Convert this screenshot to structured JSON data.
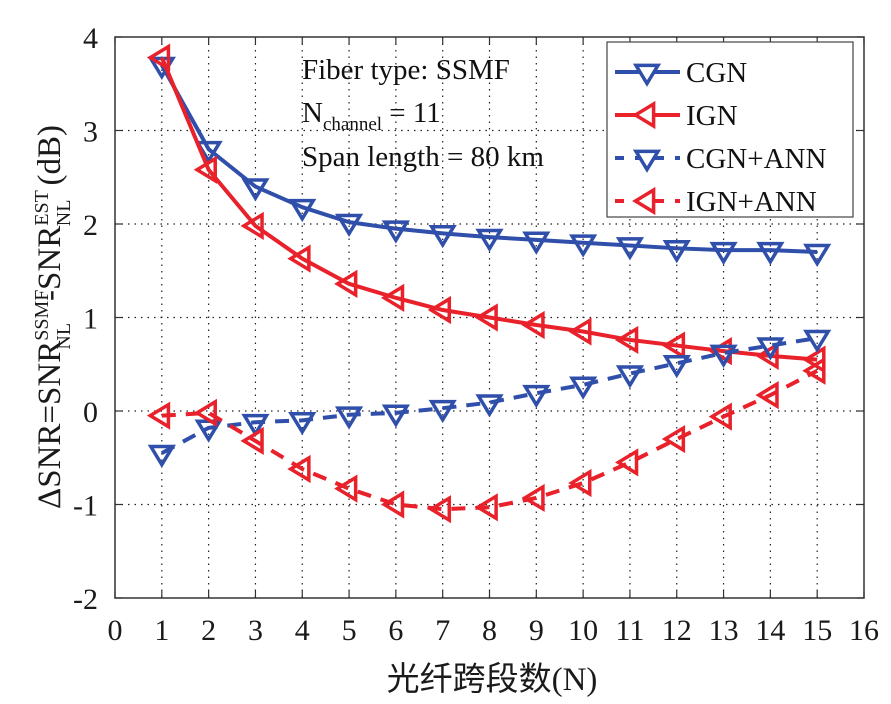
{
  "chart_data": {
    "type": "line",
    "title": "",
    "xlabel": "光纤跨段数(N)",
    "ylabel": {
      "prefix": "ΔSNR=SNR",
      "sub1": "NL",
      "sup1": "SSMF",
      "mid": "-SNR",
      "sub2": "NL",
      "sup2": "EST",
      "suffix": "(dB)"
    },
    "xlim": [
      0,
      16
    ],
    "ylim": [
      -2,
      4
    ],
    "xticks": [
      "0",
      "1",
      "2",
      "3",
      "4",
      "5",
      "6",
      "7",
      "8",
      "9",
      "10",
      "11",
      "12",
      "13",
      "14",
      "15",
      "16"
    ],
    "yticks": [
      "-2",
      "-1",
      "0",
      "1",
      "2",
      "3",
      "4"
    ],
    "grid": true,
    "x": [
      1,
      2,
      3,
      4,
      5,
      6,
      7,
      8,
      9,
      10,
      11,
      12,
      13,
      14,
      15
    ],
    "series": [
      {
        "name": "CGN",
        "color": "#2f4faa",
        "style": "solid",
        "marker": "triangle-down",
        "values": [
          3.7,
          2.8,
          2.4,
          2.18,
          2.02,
          1.95,
          1.9,
          1.86,
          1.83,
          1.8,
          1.77,
          1.74,
          1.72,
          1.72,
          1.7
        ]
      },
      {
        "name": "IGN",
        "color": "#e8212a",
        "style": "solid",
        "marker": "triangle-left",
        "values": [
          3.78,
          2.58,
          1.98,
          1.63,
          1.36,
          1.21,
          1.08,
          1.0,
          0.92,
          0.85,
          0.76,
          0.7,
          0.64,
          0.59,
          0.55
        ]
      },
      {
        "name": "CGN+ANN",
        "color": "#2f4faa",
        "style": "dashed",
        "marker": "triangle-down",
        "values": [
          -0.45,
          -0.18,
          -0.12,
          -0.1,
          -0.04,
          -0.02,
          0.03,
          0.09,
          0.19,
          0.28,
          0.4,
          0.51,
          0.62,
          0.7,
          0.78
        ]
      },
      {
        "name": "IGN+ANN",
        "color": "#e8212a",
        "style": "dashed",
        "marker": "triangle-left",
        "values": [
          -0.05,
          -0.02,
          -0.32,
          -0.62,
          -0.83,
          -1.0,
          -1.05,
          -1.03,
          -0.93,
          -0.77,
          -0.55,
          -0.3,
          -0.06,
          0.17,
          0.43
        ]
      }
    ],
    "legend": {
      "placement": "top-right",
      "entries": [
        "CGN",
        "IGN",
        "CGN+ANN",
        "IGN+ANN"
      ]
    },
    "annotations": {
      "fiber_type": "Fiber type: SSMF",
      "nchannel_main": "N",
      "nchannel_sub": "channel",
      "nchannel_rest": " = 11",
      "span_length": "Span length = 80 km"
    }
  }
}
